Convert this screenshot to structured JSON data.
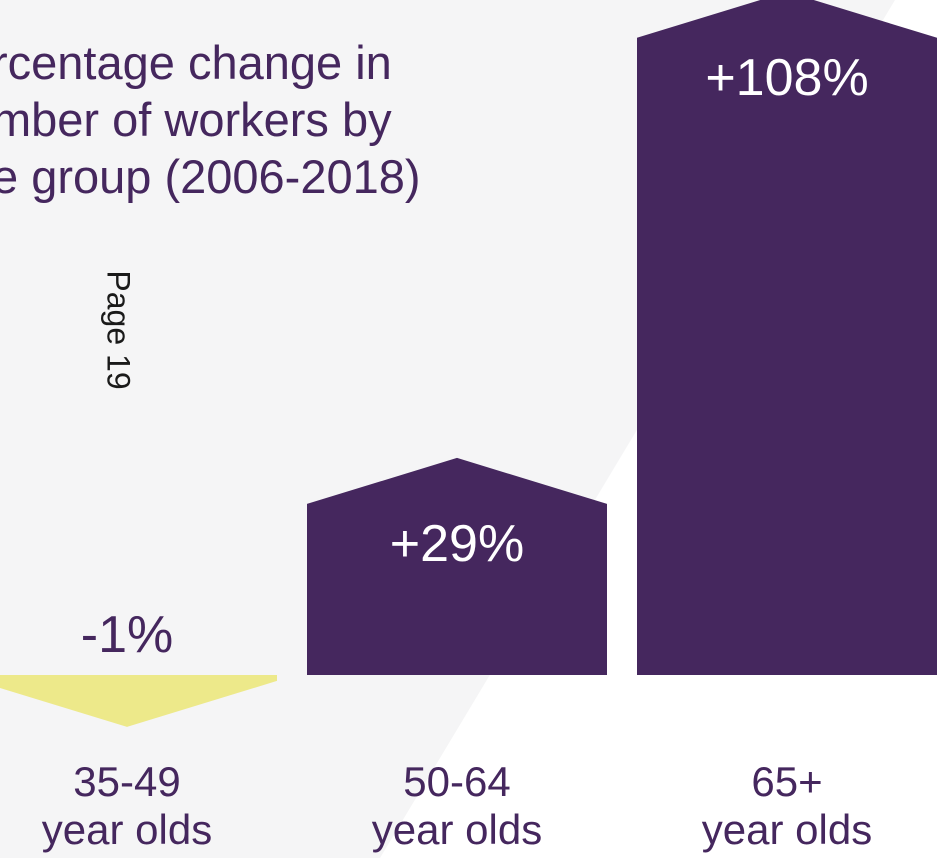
{
  "title": "rcentage change in\nmber of workers by\ne group (2006-2018)",
  "page_label": "Page 19",
  "colors": {
    "positive": "#45275e",
    "negative": "#ede98a",
    "text": "#45275e"
  },
  "chart_data": {
    "type": "bar",
    "title": "rcentage change in mber of workers by e group (2006-2018)",
    "categories": [
      "35-49\nyear olds",
      "50-64\nyear olds",
      "65+\nyear olds"
    ],
    "values": [
      -1,
      29,
      108
    ],
    "data_labels": [
      "-1%",
      "+29%",
      "+108%"
    ],
    "xlabel": "",
    "ylabel": "",
    "grid": false
  }
}
